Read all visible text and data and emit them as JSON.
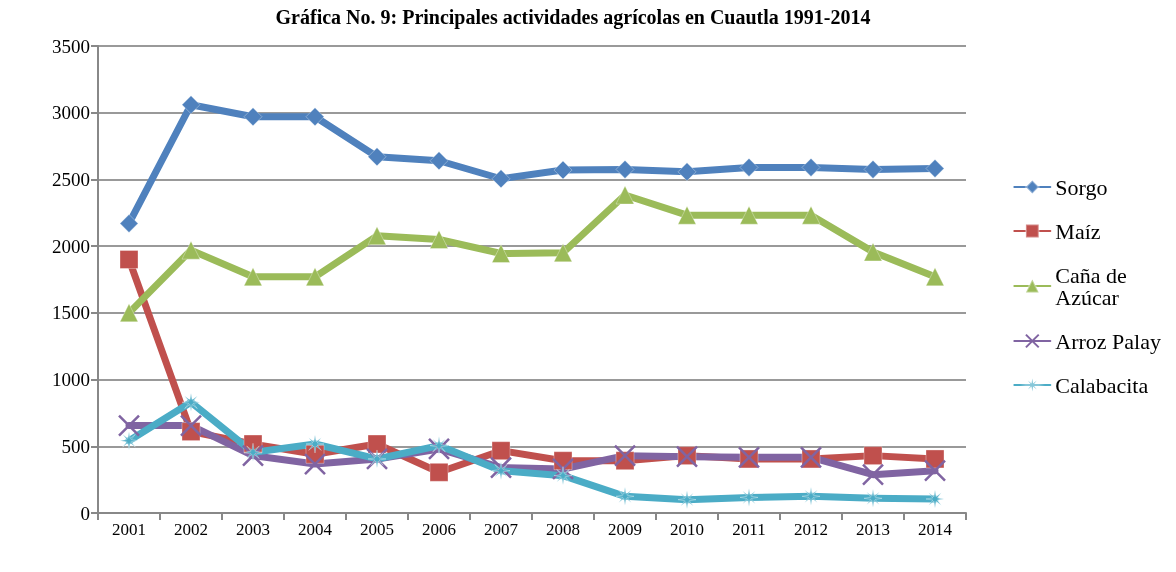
{
  "chart_data": {
    "type": "line",
    "title": "Gráfica No. 9: Principales actividades agrícolas en Cuautla 1991-2014",
    "categories": [
      "2001",
      "2002",
      "2003",
      "2004",
      "2005",
      "2006",
      "2007",
      "2008",
      "2009",
      "2010",
      "2011",
      "2012",
      "2013",
      "2014"
    ],
    "series": [
      {
        "name": "Sorgo",
        "color": "#4f81bd",
        "marker": "diamond",
        "values": [
          2170,
          3060,
          2970,
          2970,
          2670,
          2640,
          2505,
          2570,
          2575,
          2557,
          2590,
          2590,
          2575,
          2582
        ]
      },
      {
        "name": "Maíz",
        "color": "#c0504d",
        "marker": "square",
        "values": [
          1900,
          610,
          517,
          440,
          517,
          305,
          467,
          392,
          392,
          430,
          405,
          405,
          430,
          405
        ]
      },
      {
        "name": "Caña de Azúcar",
        "color": "#9bbb59",
        "marker": "triangle",
        "values": [
          1500,
          1970,
          1770,
          1770,
          2077,
          2050,
          1945,
          1950,
          2383,
          2232,
          2232,
          2232,
          1957,
          1770
        ]
      },
      {
        "name": "Arroz Palay",
        "color": "#8064a2",
        "marker": "cross",
        "values": [
          655,
          655,
          430,
          367,
          405,
          480,
          340,
          330,
          430,
          422,
          417,
          417,
          287,
          317
        ]
      },
      {
        "name": "Calabacita",
        "color": "#4bacc6",
        "marker": "star",
        "values": [
          542,
          830,
          455,
          517,
          405,
          505,
          317,
          280,
          125,
          100,
          117,
          125,
          110,
          105
        ]
      }
    ],
    "ylim": [
      0,
      3500
    ],
    "yticks": [
      0,
      500,
      1000,
      1500,
      2000,
      2500,
      3000,
      3500
    ],
    "grid": "y",
    "legend": "right",
    "line_style": "solid"
  }
}
